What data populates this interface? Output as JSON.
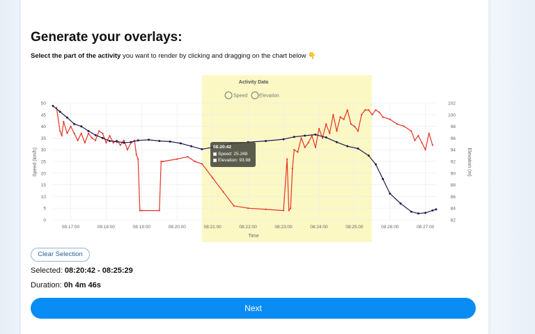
{
  "page": {
    "title": "Generate your overlays:",
    "subtitle_bold": "Select the part of the activity",
    "subtitle_rest": " you want to render by clicking and dragging on the chart below 👇"
  },
  "chart_data": {
    "type": "line",
    "title": "Activity Data",
    "xlabel": "Time",
    "ylabel_left": "Speed (km/h)",
    "ylabel_right": "Elevation (m)",
    "x_ticks": [
      "08:17:00",
      "08:18:00",
      "08:19:00",
      "08:20:00",
      "08:21:00",
      "08:22:00",
      "08:23:00",
      "08:24:00",
      "08:25:00",
      "08:26:00",
      "08:27:00"
    ],
    "y_left_ticks": [
      "0",
      "5",
      "10",
      "15",
      "20",
      "25",
      "30",
      "35",
      "40",
      "45",
      "50"
    ],
    "y_right_ticks": [
      "82",
      "84",
      "86",
      "88",
      "90",
      "92",
      "94",
      "96",
      "98",
      "100",
      "102"
    ],
    "y_left_range": [
      0,
      50
    ],
    "y_right_range": [
      82,
      102
    ],
    "x_range_minutes": [
      16.5,
      27.3
    ],
    "selection_minutes": [
      20.7,
      25.49
    ],
    "legend": [
      "Speed",
      "Elevation"
    ],
    "colors": {
      "speed": "#e53226",
      "elevation": "#1f1a4b",
      "selection": "#fbf8c4"
    },
    "series": [
      {
        "name": "Speed",
        "x": [
          16.6,
          16.7,
          16.75,
          16.8,
          16.9,
          17.0,
          17.1,
          17.2,
          17.3,
          17.4,
          17.5,
          17.6,
          17.7,
          17.8,
          17.9,
          18.0,
          18.1,
          18.2,
          18.3,
          18.4,
          18.5,
          18.6,
          18.7,
          18.8,
          18.85,
          18.9,
          18.95,
          19.0,
          19.5,
          19.55,
          19.6,
          20.0,
          20.3,
          20.5,
          20.7,
          21.0,
          21.3,
          21.6,
          22.0,
          22.5,
          23.0,
          23.1,
          23.15,
          23.2,
          23.25,
          23.3,
          23.4,
          23.5,
          23.6,
          23.7,
          23.8,
          23.9,
          24.0,
          24.1,
          24.2,
          24.3,
          24.4,
          24.5,
          24.6,
          24.7,
          24.8,
          24.9,
          25.0,
          25.1,
          25.2,
          25.3,
          25.4,
          25.5,
          25.6,
          25.7,
          25.8,
          26.0,
          26.2,
          26.4,
          26.6,
          26.7,
          26.8,
          26.9,
          27.0,
          27.1,
          27.2
        ],
        "y": [
          48,
          38,
          36,
          42,
          37,
          40,
          37,
          34,
          37,
          33,
          37,
          35,
          34,
          38,
          37,
          33,
          36,
          33,
          34,
          32,
          34,
          30,
          33,
          34,
          28,
          26,
          4,
          4,
          4,
          25,
          25,
          26,
          27,
          25,
          24,
          18,
          12,
          6,
          5,
          4.5,
          4,
          26,
          4,
          5,
          22,
          30,
          29,
          35,
          31,
          33,
          36,
          31,
          39,
          35,
          41,
          37,
          45,
          38,
          44,
          43,
          47,
          41,
          40,
          38,
          45,
          47,
          47,
          45,
          47,
          46,
          44,
          43,
          41,
          40,
          38,
          34,
          36,
          33,
          30,
          37,
          32
        ]
      },
      {
        "name": "Elevation",
        "x": [
          16.5,
          16.7,
          16.9,
          17.1,
          17.3,
          17.5,
          17.7,
          17.9,
          18.1,
          18.3,
          18.5,
          18.7,
          18.9,
          19.2,
          19.5,
          19.8,
          20.1,
          20.4,
          20.7,
          21.0,
          21.5,
          22.0,
          22.5,
          23.0,
          23.3,
          23.6,
          23.9,
          24.2,
          24.5,
          24.8,
          25.1,
          25.4,
          25.6,
          25.8,
          26.0,
          26.3,
          26.6,
          26.8,
          27.0,
          27.2,
          27.3
        ],
        "y": [
          101.5,
          100.5,
          99.5,
          98.4,
          98,
          97.2,
          96.5,
          96,
          95.5,
          95.4,
          95.2,
          95.3,
          95.6,
          95.7,
          95.5,
          95.4,
          95.1,
          94.6,
          94.1,
          94.4,
          95,
          95.3,
          95.5,
          95.8,
          96.2,
          96.4,
          96.6,
          96.1,
          95.3,
          94.6,
          94.2,
          93,
          91.5,
          89,
          86.5,
          84.8,
          83.4,
          83.1,
          83.2,
          83.6,
          83.8
        ]
      }
    ],
    "tooltip": {
      "title": "08:20:42",
      "speed_label": "Speed: 25.248",
      "elevation_label": "Elevation: 93.98"
    }
  },
  "controls": {
    "clear_label": "Clear Selection",
    "selected_label": "Selected: ",
    "selected_value": "08:20:42 - 08:25:29",
    "duration_label": "Duration: ",
    "duration_value": "0h 4m 46s",
    "next_label": "Next"
  }
}
